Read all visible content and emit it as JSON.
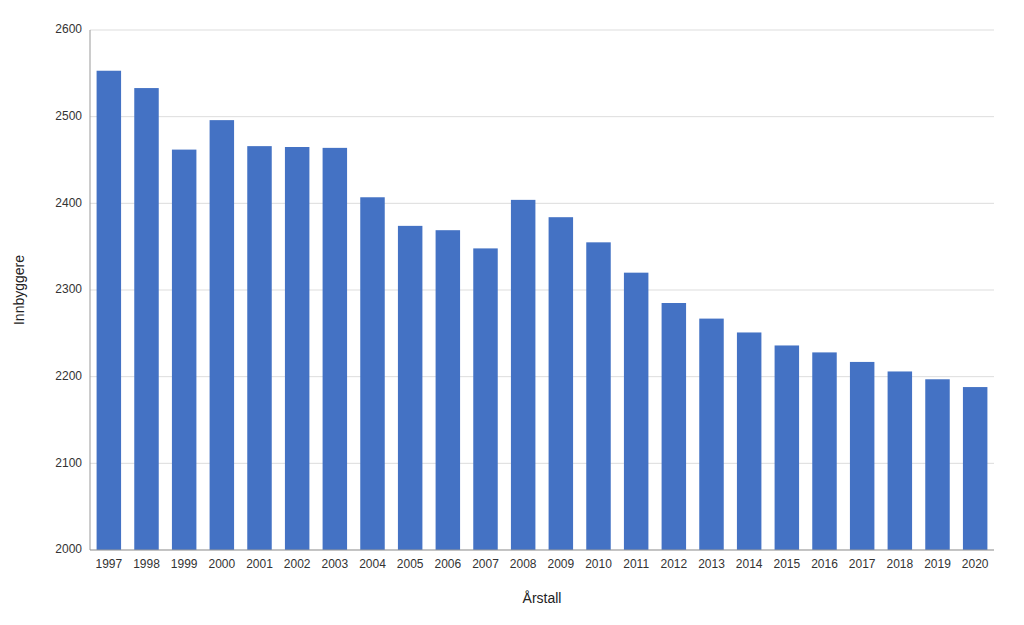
{
  "chart_data": {
    "type": "bar",
    "categories": [
      "1997",
      "1998",
      "1999",
      "2000",
      "2001",
      "2002",
      "2003",
      "2004",
      "2005",
      "2006",
      "2007",
      "2008",
      "2009",
      "2010",
      "2011",
      "2012",
      "2013",
      "2014",
      "2015",
      "2016",
      "2017",
      "2018",
      "2019",
      "2020"
    ],
    "values": [
      2553,
      2533,
      2462,
      2496,
      2466,
      2465,
      2464,
      2407,
      2374,
      2369,
      2348,
      2404,
      2384,
      2355,
      2320,
      2285,
      2267,
      2251,
      2236,
      2228,
      2217,
      2206,
      2197,
      2188
    ],
    "color": "#4472C4",
    "xlabel": "Årstall",
    "ylabel": "Innbyggere",
    "ylim": [
      2000,
      2600
    ],
    "yticks": [
      2000,
      2100,
      2200,
      2300,
      2400,
      2500,
      2600
    ],
    "grid": true
  }
}
